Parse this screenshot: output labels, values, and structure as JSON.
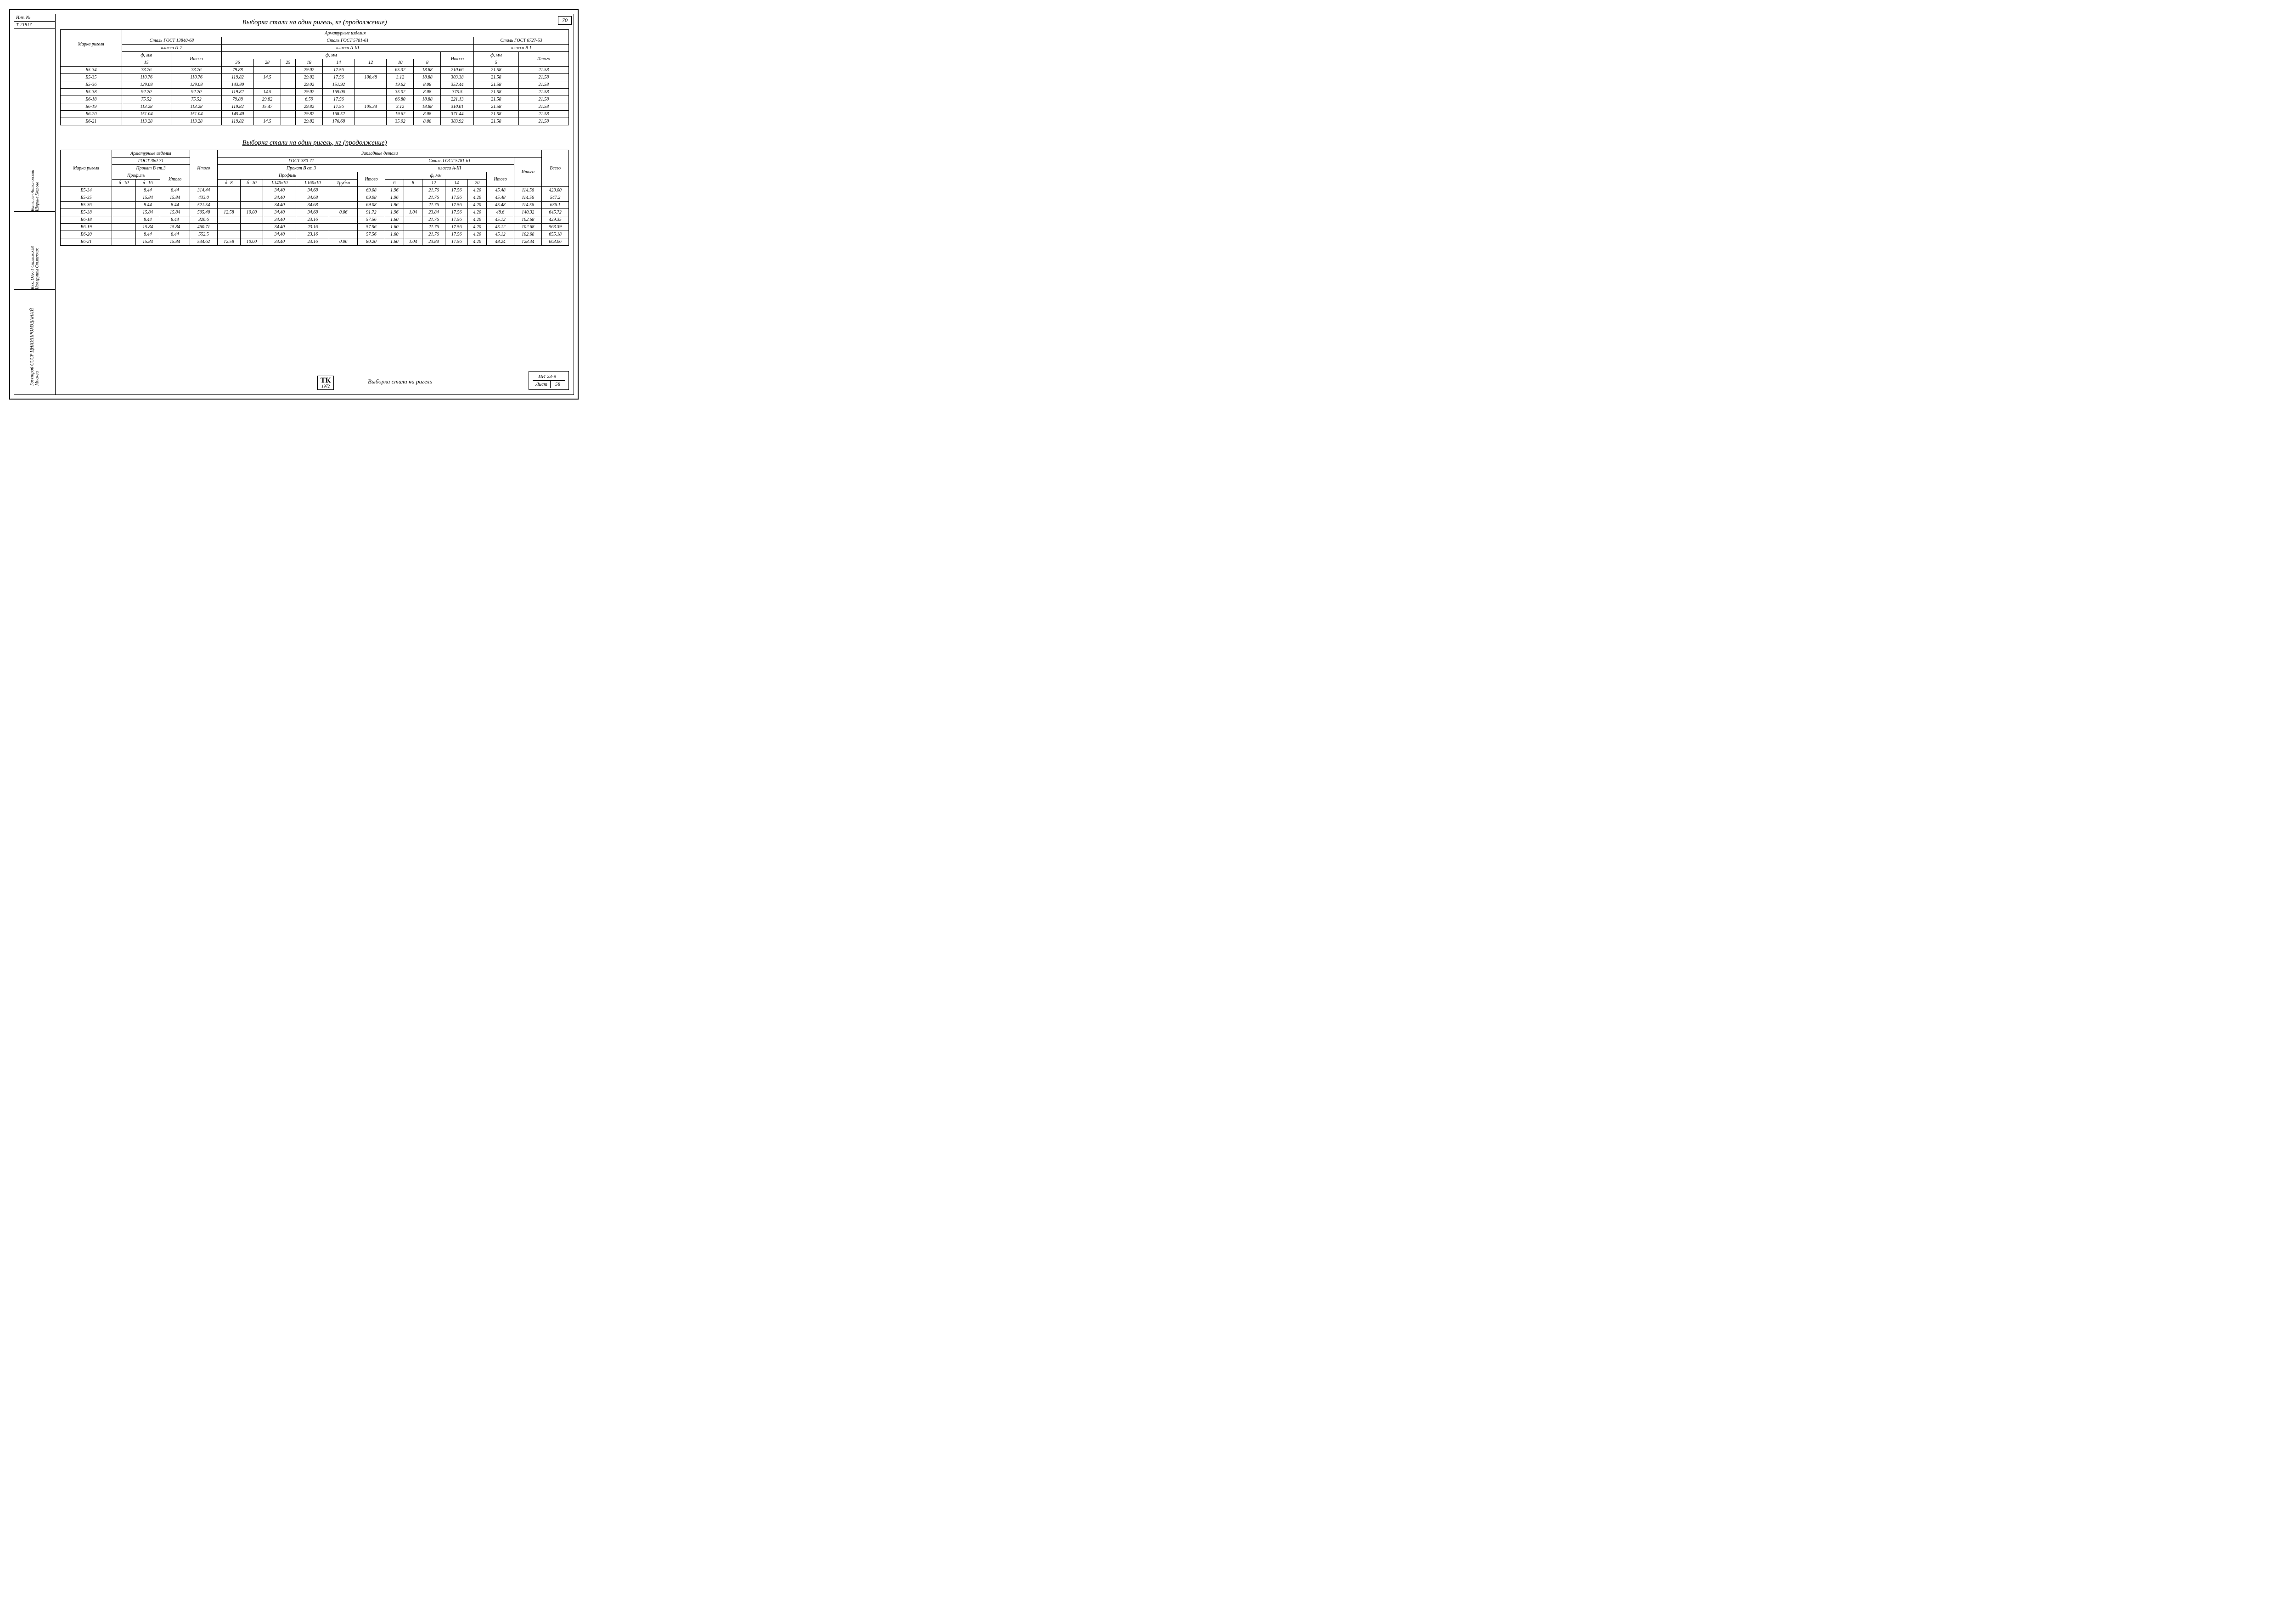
{
  "page_number": "70",
  "left_labels": {
    "inv": "Инв. №",
    "t_no": "Т-21817"
  },
  "vert_labels": [
    "Винницин\nАнтоновский\nШорина\nКозлова",
    "Вз.к. ОТК-1\nСт.инж.ОВ\nНач.группы\nСт.техник",
    "Госстрой СССР\nЦНИИПРОМЗДАНИЙ\nМосква"
  ],
  "title1": "Выборка стали на один ригель, кг (продолжение)",
  "title2": "Выборка стали на один ригель, кг (продолжение)",
  "t1_header": {
    "marka": "Марка\nригеля",
    "arm": "Арматурные изделия",
    "gost1": "Сталь ГОСТ 13840-68",
    "gost2": "Сталь ГОСТ 5781-61",
    "gost3": "Сталь ГОСТ 6727-53",
    "klass_p7": "класса П-7",
    "klass_a3": "класса А-III",
    "klass_b1": "класса В-I",
    "d_mm": "ф, мм",
    "itogo": "Итого",
    "d15": "15",
    "d36": "36",
    "d28": "28",
    "d25": "25",
    "d18": "18",
    "d14": "14",
    "d12": "12",
    "d10": "10",
    "d8": "8",
    "d5": "5"
  },
  "t1_rows": [
    {
      "m": "Б5-34",
      "c15": "73.76",
      "i1": "73.76",
      "c36": "79.88",
      "c28": "",
      "c25": "",
      "c18": "29.02",
      "c14": "17.56",
      "c12": "",
      "c10": "65.32",
      "c8": "18.88",
      "i2": "210.66",
      "c5": "21.58",
      "i3": "21.58"
    },
    {
      "m": "Б5-35",
      "c15": "110.76",
      "i1": "110.76",
      "c36": "119.82",
      "c28": "14.5",
      "c25": "",
      "c18": "29.02",
      "c14": "17.56",
      "c12": "100.48",
      "c10": "3.12",
      "c8": "18.88",
      "i2": "303.38",
      "c5": "21.58",
      "i3": "21.58"
    },
    {
      "m": "Б5-36",
      "c15": "129.08",
      "i1": "129.08",
      "c36": "143.80",
      "c28": "",
      "c25": "",
      "c18": "29.02",
      "c14": "151.92",
      "c12": "",
      "c10": "19.62",
      "c8": "8.08",
      "i2": "352.44",
      "c5": "21.58",
      "i3": "21.58"
    },
    {
      "m": "Б5-38",
      "c15": "92.20",
      "i1": "92.20",
      "c36": "119.82",
      "c28": "14.5",
      "c25": "",
      "c18": "29.02",
      "c14": "169.06",
      "c12": "",
      "c10": "35.02",
      "c8": "8.08",
      "i2": "375.5",
      "c5": "21.58",
      "i3": "21.58"
    },
    {
      "m": "Б6-18",
      "c15": "75.52",
      "i1": "75.52",
      "c36": "79.88",
      "c28": "29.82",
      "c25": "",
      "c18": "6.59",
      "c14": "17.56",
      "c12": "",
      "c10": "66.80",
      "c8": "18.88",
      "i2": "221.13",
      "c5": "21.58",
      "i3": "21.58"
    },
    {
      "m": "Б6-19",
      "c15": "113.28",
      "i1": "113.28",
      "c36": "119.82",
      "c28": "15.47",
      "c25": "",
      "c18": "29.82",
      "c14": "17.56",
      "c12": "105.34",
      "c10": "3.12",
      "c8": "18.88",
      "i2": "310.01",
      "c5": "21.58",
      "i3": "21.58"
    },
    {
      "m": "Б6-20",
      "c15": "151.04",
      "i1": "151.04",
      "c36": "145.40",
      "c28": "",
      "c25": "",
      "c18": "29.82",
      "c14": "168.52",
      "c12": "",
      "c10": "19.62",
      "c8": "8.08",
      "i2": "371.44",
      "c5": "21.58",
      "i3": "21.58"
    },
    {
      "m": "Б6-21",
      "c15": "113.28",
      "i1": "113.28",
      "c36": "119.82",
      "c28": "14.5",
      "c25": "",
      "c18": "29.82",
      "c14": "176.68",
      "c12": "",
      "c10": "35.02",
      "c8": "8.08",
      "i2": "383.92",
      "c5": "21.58",
      "i3": "21.58"
    }
  ],
  "t2_header": {
    "marka": "Марка\nригеля",
    "arm": "Арматурные изделия",
    "zak": "Закладные детали",
    "gost380": "ГОСТ 380-71",
    "prokat": "Прокат В ст.3",
    "profil": "Профиль",
    "s10": "δ=10",
    "s16": "δ=16",
    "itogo": "Итого",
    "vsego": "Всего",
    "st5781": "Сталь ГОСТ 5781-61",
    "klass_a3": "класса А-III",
    "d_mm": "ф, мм",
    "d8": "δ=8",
    "d10p": "δ=10",
    "l140": "L140x10",
    "l160": "L160x10",
    "tr": "Трубка",
    "c6": "6",
    "c8": "8",
    "c12": "12",
    "c14": "14",
    "c20": "20"
  },
  "t2_rows": [
    {
      "m": "Б5-34",
      "s10": "",
      "s16": "8.44",
      "i1": "8.44",
      "i2": "314.44",
      "d8": "",
      "d10": "",
      "l140": "34.40",
      "l160": "34.68",
      "tr": "",
      "iz": "69.08",
      "c6": "1.96",
      "c8": "",
      "c12": "21.76",
      "c14": "17.56",
      "c20": "4.20",
      "ia": "45.48",
      "it": "114.56",
      "vs": "429.00"
    },
    {
      "m": "Б5-35",
      "s10": "",
      "s16": "15.84",
      "i1": "15.84",
      "i2": "433.0",
      "d8": "",
      "d10": "",
      "l140": "34.40",
      "l160": "34.68",
      "tr": "",
      "iz": "69.08",
      "c6": "1.96",
      "c8": "",
      "c12": "21.76",
      "c14": "17.56",
      "c20": "4.20",
      "ia": "45.48",
      "it": "114.56",
      "vs": "547.2"
    },
    {
      "m": "Б5-36",
      "s10": "",
      "s16": "8.44",
      "i1": "8.44",
      "i2": "521.54",
      "d8": "",
      "d10": "",
      "l140": "34.40",
      "l160": "34.68",
      "tr": "",
      "iz": "69.08",
      "c6": "1.96",
      "c8": "",
      "c12": "21.76",
      "c14": "17.56",
      "c20": "4.20",
      "ia": "45.48",
      "it": "114.56",
      "vs": "636.1"
    },
    {
      "m": "Б5-38",
      "s10": "",
      "s16": "15.84",
      "i1": "15.84",
      "i2": "505.40",
      "d8": "12.58",
      "d10": "10.00",
      "l140": "34.40",
      "l160": "34.68",
      "tr": "0.06",
      "iz": "91.72",
      "c6": "1.96",
      "c8": "1.04",
      "c12": "23.84",
      "c14": "17.56",
      "c20": "4.20",
      "ia": "48.6",
      "it": "140.32",
      "vs": "645.72"
    },
    {
      "m": "Б6-18",
      "s10": "",
      "s16": "8.44",
      "i1": "8.44",
      "i2": "326.6",
      "d8": "",
      "d10": "",
      "l140": "34.40",
      "l160": "23.16",
      "tr": "",
      "iz": "57.56",
      "c6": "1.60",
      "c8": "",
      "c12": "21.76",
      "c14": "17.56",
      "c20": "4.20",
      "ia": "45.12",
      "it": "102.68",
      "vs": "429.35"
    },
    {
      "m": "Б6-19",
      "s10": "",
      "s16": "15.84",
      "i1": "15.84",
      "i2": "460.71",
      "d8": "",
      "d10": "",
      "l140": "34.40",
      "l160": "23.16",
      "tr": "",
      "iz": "57.56",
      "c6": "1.60",
      "c8": "",
      "c12": "21.76",
      "c14": "17.56",
      "c20": "4.20",
      "ia": "45.12",
      "it": "102.68",
      "vs": "563.39"
    },
    {
      "m": "Б6-20",
      "s10": "",
      "s16": "8.44",
      "i1": "8.44",
      "i2": "552.5",
      "d8": "",
      "d10": "",
      "l140": "34.40",
      "l160": "23.16",
      "tr": "",
      "iz": "57.56",
      "c6": "1.60",
      "c8": "",
      "c12": "21.76",
      "c14": "17.56",
      "c20": "4.20",
      "ia": "45.12",
      "it": "102.68",
      "vs": "655.18"
    },
    {
      "m": "Б6-21",
      "s10": "",
      "s16": "15.84",
      "i1": "15.84",
      "i2": "534.62",
      "d8": "12.58",
      "d10": "10.00",
      "l140": "34.40",
      "l160": "23.16",
      "tr": "0.06",
      "iz": "80.20",
      "c6": "1.60",
      "c8": "1.04",
      "c12": "23.84",
      "c14": "17.56",
      "c20": "4.20",
      "ia": "48.24",
      "it": "128.44",
      "vs": "663.06"
    }
  ],
  "footer": {
    "tk": "ТК",
    "year": "1972",
    "title": "Выборка стали на ригель",
    "code": "ИИ 23-9",
    "list": "Лист",
    "listno": "58"
  }
}
